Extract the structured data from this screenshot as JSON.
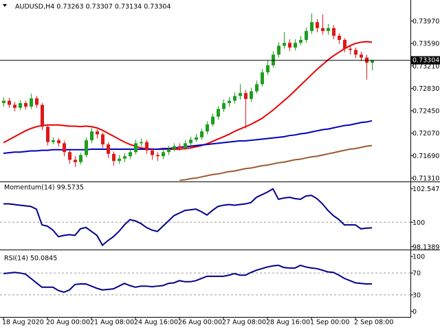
{
  "chart_data": [
    {
      "type": "candlestick",
      "title": "AUDUSD,H4  0.73263 0.73307 0.73134 0.73304",
      "categories": [
        "18 Aug 2020",
        null,
        null,
        null,
        null,
        null,
        null,
        null,
        "20 Aug 00:00",
        null,
        null,
        null,
        null,
        null,
        null,
        null,
        "21 Aug 08:00",
        null,
        null,
        null,
        null,
        null,
        null,
        null,
        "24 Aug 16:00",
        null,
        null,
        null,
        null,
        null,
        null,
        null,
        "26 Aug 00:00",
        null,
        null,
        null,
        null,
        null,
        null,
        null,
        "27 Aug 08:00",
        null,
        null,
        null,
        null,
        null,
        null,
        null,
        "28 Aug 16:00",
        null,
        null,
        null,
        null,
        null,
        null,
        null,
        "1 Sep 00:00",
        null,
        null,
        null,
        null,
        null,
        null,
        null,
        "2 Sep 08:00",
        null,
        null,
        null
      ],
      "open": [
        0.7258,
        0.7262,
        0.7255,
        0.725,
        0.7258,
        0.7252,
        0.7266,
        0.7255,
        0.7218,
        0.7192,
        0.7195,
        0.719,
        0.7175,
        0.7162,
        0.7158,
        0.717,
        0.7195,
        0.721,
        0.7205,
        0.7188,
        0.7172,
        0.716,
        0.7164,
        0.7168,
        0.7175,
        0.719,
        0.7192,
        0.7178,
        0.717,
        0.7168,
        0.7175,
        0.718,
        0.7185,
        0.7182,
        0.719,
        0.7196,
        0.72,
        0.721,
        0.7222,
        0.7235,
        0.7248,
        0.7258,
        0.7262,
        0.727,
        0.7275,
        0.7265,
        0.7278,
        0.729,
        0.731,
        0.7322,
        0.734,
        0.7355,
        0.736,
        0.7352,
        0.736,
        0.7365,
        0.738,
        0.7395,
        0.7385,
        0.738,
        0.7385,
        0.7372,
        0.7365,
        0.735,
        0.7348,
        0.734,
        0.7335,
        0.73263
      ],
      "high": [
        0.7268,
        0.7267,
        0.726,
        0.7263,
        0.7262,
        0.7274,
        0.727,
        0.7258,
        0.7222,
        0.72,
        0.7199,
        0.7194,
        0.7178,
        0.7168,
        0.7174,
        0.72,
        0.7216,
        0.7214,
        0.7208,
        0.7192,
        0.7176,
        0.717,
        0.7173,
        0.718,
        0.7196,
        0.7198,
        0.7196,
        0.7182,
        0.7175,
        0.718,
        0.7186,
        0.719,
        0.719,
        0.7195,
        0.7201,
        0.7206,
        0.7215,
        0.7227,
        0.724,
        0.7253,
        0.7264,
        0.7268,
        0.7276,
        0.729,
        0.728,
        0.7284,
        0.7296,
        0.7316,
        0.733,
        0.7346,
        0.7361,
        0.7378,
        0.7366,
        0.7366,
        0.7372,
        0.7386,
        0.741,
        0.74,
        0.7408,
        0.7392,
        0.739,
        0.7376,
        0.7368,
        0.7356,
        0.7352,
        0.7345,
        0.734,
        0.73307
      ],
      "low": [
        0.7252,
        0.725,
        0.7244,
        0.7246,
        0.7247,
        0.7248,
        0.725,
        0.7212,
        0.7186,
        0.7188,
        0.7184,
        0.7168,
        0.7155,
        0.715,
        0.7154,
        0.7166,
        0.719,
        0.7198,
        0.7182,
        0.7165,
        0.7152,
        0.7155,
        0.7158,
        0.7163,
        0.7171,
        0.7184,
        0.7172,
        0.7162,
        0.716,
        0.7163,
        0.717,
        0.7176,
        0.7177,
        0.7178,
        0.7186,
        0.7192,
        0.7196,
        0.7205,
        0.7218,
        0.723,
        0.7243,
        0.7252,
        0.7257,
        0.7264,
        0.7215,
        0.726,
        0.7274,
        0.7286,
        0.7305,
        0.7318,
        0.7335,
        0.735,
        0.7346,
        0.7347,
        0.7356,
        0.736,
        0.7375,
        0.7378,
        0.7374,
        0.7374,
        0.7366,
        0.7358,
        0.7344,
        0.734,
        0.7334,
        0.7329,
        0.7298,
        0.73134
      ],
      "close": [
        0.7262,
        0.7255,
        0.725,
        0.7258,
        0.7252,
        0.7266,
        0.7255,
        0.7218,
        0.7192,
        0.7195,
        0.719,
        0.7175,
        0.7162,
        0.7158,
        0.717,
        0.7195,
        0.721,
        0.7205,
        0.7188,
        0.7172,
        0.716,
        0.7164,
        0.7168,
        0.7175,
        0.719,
        0.7192,
        0.7178,
        0.717,
        0.7168,
        0.7175,
        0.718,
        0.7185,
        0.7182,
        0.719,
        0.7196,
        0.72,
        0.721,
        0.7222,
        0.7235,
        0.7248,
        0.7258,
        0.7262,
        0.727,
        0.7275,
        0.7265,
        0.7278,
        0.729,
        0.731,
        0.7322,
        0.734,
        0.7355,
        0.736,
        0.7352,
        0.736,
        0.7365,
        0.738,
        0.7395,
        0.7385,
        0.738,
        0.7385,
        0.7372,
        0.7365,
        0.735,
        0.7348,
        0.734,
        0.7335,
        0.73263,
        0.73304
      ],
      "up_color": "#1e9e1e",
      "down_color": "#e01818",
      "series": [
        {
          "color": "#e80000",
          "values": [
            0.7191,
            0.7196,
            0.7201,
            0.7206,
            0.7211,
            0.7215,
            0.7218,
            0.722,
            0.7221,
            0.7221,
            0.7221,
            0.722,
            0.7219,
            0.7219,
            0.7218,
            0.7219,
            0.7218,
            0.7216,
            0.7212,
            0.7207,
            0.7202,
            0.7197,
            0.7192,
            0.7188,
            0.7185,
            0.7182,
            0.7181,
            0.718,
            0.718,
            0.718,
            0.718,
            0.718,
            0.718,
            0.7181,
            0.7182,
            0.7184,
            0.7186,
            0.7189,
            0.7193,
            0.7197,
            0.7201,
            0.7205,
            0.721,
            0.7214,
            0.7218,
            0.7222,
            0.7227,
            0.7232,
            0.7239,
            0.7246,
            0.7254,
            0.7262,
            0.727,
            0.7279,
            0.7288,
            0.7297,
            0.7306,
            0.7315,
            0.7323,
            0.7331,
            0.7338,
            0.7344,
            0.735,
            0.7355,
            0.7359,
            0.7361,
            0.7362,
            0.7361
          ]
        },
        {
          "color": "#0000c0",
          "values": [
            0.7173,
            0.7174,
            0.7175,
            0.7175,
            0.7176,
            0.7177,
            0.7177,
            0.7178,
            0.7178,
            0.7179,
            0.7179,
            0.7179,
            0.7179,
            0.7179,
            0.7179,
            0.7179,
            0.718,
            0.718,
            0.718,
            0.718,
            0.718,
            0.718,
            0.718,
            0.718,
            0.718,
            0.718,
            0.718,
            0.718,
            0.718,
            0.7181,
            0.7181,
            0.7182,
            0.7183,
            0.7184,
            0.7185,
            0.7186,
            0.7187,
            0.7188,
            0.7189,
            0.719,
            0.7191,
            0.7192,
            0.7193,
            0.7194,
            0.7194,
            0.7195,
            0.7196,
            0.7197,
            0.7198,
            0.7199,
            0.72,
            0.7201,
            0.7203,
            0.7204,
            0.7206,
            0.7207,
            0.7209,
            0.7211,
            0.7213,
            0.7214,
            0.7216,
            0.7218,
            0.722,
            0.7221,
            0.7223,
            0.7225,
            0.7226,
            0.7228
          ]
        },
        {
          "color": "#9a5a32",
          "values": [
            null,
            null,
            null,
            null,
            null,
            null,
            null,
            null,
            null,
            null,
            null,
            null,
            null,
            null,
            null,
            null,
            null,
            null,
            null,
            null,
            null,
            null,
            null,
            null,
            null,
            null,
            null,
            null,
            null,
            null,
            null,
            null,
            0.7127,
            0.7128,
            0.713,
            0.7131,
            0.7133,
            0.7135,
            0.7137,
            0.7138,
            0.714,
            0.7142,
            0.7143,
            0.7145,
            0.7147,
            0.7148,
            0.715,
            0.7152,
            0.7153,
            0.7155,
            0.7157,
            0.7158,
            0.716,
            0.7162,
            0.7163,
            0.7165,
            0.7167,
            0.7168,
            0.717,
            0.7172,
            0.7174,
            0.7176,
            0.7178,
            0.718,
            0.7181,
            0.7183,
            0.7185,
            0.7186
          ]
        }
      ],
      "current_price": {
        "value": 0.73304,
        "label": "0.73304"
      },
      "ylim": [
        0.71264,
        0.7429
      ],
      "yticks": [
        {
          "value": 0.7397,
          "label": "0.73970"
        },
        {
          "value": 0.7359,
          "label": "0.73590"
        },
        {
          "value": 0.7321,
          "label": "0.73210"
        },
        {
          "value": 0.7283,
          "label": "0.72830"
        },
        {
          "value": 0.7245,
          "label": "0.72450"
        },
        {
          "value": 0.7207,
          "label": "0.72070"
        },
        {
          "value": 0.7169,
          "label": "0.71690"
        },
        {
          "value": 0.7131,
          "label": "0.71310"
        }
      ]
    },
    {
      "type": "line",
      "title": "Momentum(14) 99.5735",
      "color": "#00008b",
      "values": [
        101.4,
        101.4,
        101.35,
        101.3,
        101.25,
        101.2,
        101.0,
        99.8,
        99.7,
        99.4,
        98.9,
        99.0,
        99.05,
        99.0,
        99.5,
        99.6,
        99.3,
        99.0,
        98.25,
        98.6,
        98.9,
        99.3,
        99.8,
        100.2,
        100.1,
        99.9,
        99.6,
        99.4,
        99.3,
        99.7,
        100.1,
        100.5,
        100.7,
        100.9,
        100.95,
        101.0,
        100.8,
        100.55,
        100.9,
        101.2,
        101.3,
        101.35,
        101.3,
        101.35,
        101.4,
        101.5,
        101.9,
        102.1,
        102.3,
        102.55,
        101.75,
        101.85,
        101.9,
        101.8,
        101.75,
        102.0,
        102.05,
        101.8,
        101.4,
        100.9,
        100.5,
        100.2,
        99.8,
        99.8,
        99.8,
        99.5,
        99.55,
        99.5735
      ],
      "ylim": [
        97.97,
        103.0
      ],
      "yticks": [
        102.5474,
        100,
        98.1389
      ],
      "levels": [
        100
      ]
    },
    {
      "type": "line",
      "title": "RSI(14) 50.0845",
      "color": "#00008b",
      "values": [
        69,
        70,
        71,
        70,
        68,
        60,
        52,
        44,
        44,
        44,
        38,
        35,
        39,
        49,
        50,
        50,
        46,
        42,
        39,
        40,
        41,
        46,
        51,
        47,
        44,
        46,
        46,
        45,
        46,
        47,
        51,
        52,
        56,
        54,
        54,
        56,
        60,
        64,
        64,
        64,
        64,
        66,
        69,
        66,
        66,
        71,
        75,
        78,
        81,
        83,
        84,
        80,
        79,
        79,
        84,
        81,
        79,
        78,
        75,
        72,
        71,
        66,
        60,
        56,
        52,
        51,
        50,
        50.0845
      ],
      "ylim": [
        -9,
        109
      ],
      "yticks": [
        100,
        70,
        30,
        0
      ],
      "levels": [
        70,
        30
      ]
    }
  ]
}
